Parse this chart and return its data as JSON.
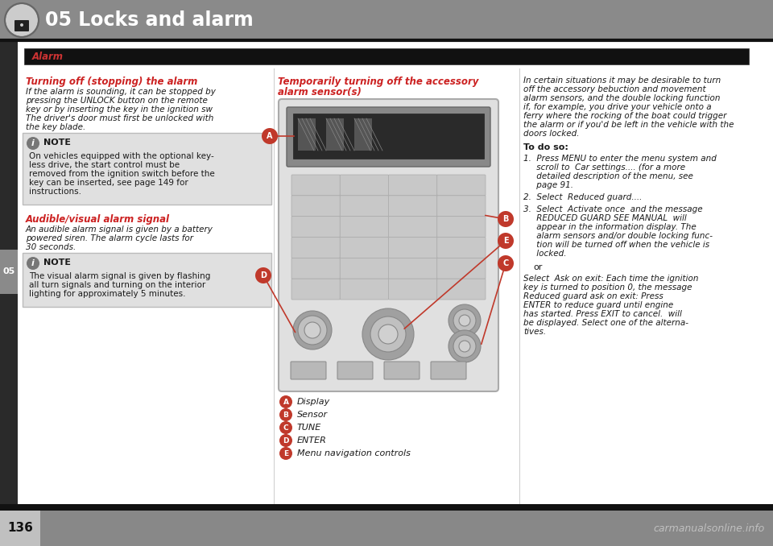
{
  "title": "05 Locks and alarm",
  "header_bg": "#8a8a8a",
  "header_text_color": "#ffffff",
  "page_bg": "#2a2a2a",
  "content_bg": "#ffffff",
  "alarm_label": "Alarm",
  "alarm_bar_bg": "#1a1a1a",
  "alarm_label_color": "#cc3333",
  "section1_title": "Turning off (stopping) the alarm",
  "section1_body_lines": [
    "If the alarm is sounding, it can be stopped by",
    "pressing the UNLOCK button on the remote",
    "key or by inserting the key in the ignition sw",
    "The driver's door must first be unlocked with",
    "the key blade."
  ],
  "note1_body_lines": [
    "On vehicles equipped with the optional key-",
    "less drive, the start control must be",
    "removed from the ignition switch before the",
    "key can be inserted, see page 149 for",
    "instructions."
  ],
  "section2_title": "Audible/visual alarm signal",
  "section2_body_lines": [
    "An audible alarm signal is given by a battery",
    "powered siren. The alarm cycle lasts for",
    "30 seconds."
  ],
  "note2_body_lines": [
    "The visual alarm signal is given by flashing",
    "all turn signals and turning on the interior",
    "lighting for approximately 5 minutes."
  ],
  "center_title_lines": [
    "Temporarily turning off the accessory",
    "alarm sensor(s)"
  ],
  "center_legend": [
    [
      "A",
      "Display"
    ],
    [
      "B",
      "Sensor"
    ],
    [
      "C",
      "TUNE"
    ],
    [
      "D",
      "ENTER"
    ],
    [
      "E",
      "Menu navigation controls"
    ]
  ],
  "right_body1_lines": [
    "In certain situations it may be desirable to turn",
    "off the accessory bebuction and movement",
    "alarm sensors, and the double locking function",
    "if, for example, you drive your vehicle onto a",
    "ferry where the rocking of the boat could trigger",
    "the alarm or if you'd be left in the vehicle with the",
    "doors locked."
  ],
  "right_todo": "To do so:",
  "right_item1_lines": [
    "1.  Press MENU to enter the menu system and",
    "     scroll to  Car settings.... (for a more",
    "     detailed description of the menu, see",
    "     page 91."
  ],
  "right_item2_lines": [
    "2.  Select  Reduced guard...."
  ],
  "right_item3_lines": [
    "3.  Select  Activate once  and the message",
    "     REDUCED GUARD SEE MANUAL  will",
    "     appear in the information display. The",
    "     alarm sensors and/or double locking func-",
    "     tion will be turned off when the vehicle is",
    "     locked."
  ],
  "right_or": "or",
  "right_item4_lines": [
    "Select  Ask on exit: Each time the ignition",
    "key is turned to position 0, the message",
    "Reduced guard ask on exit: Press",
    "ENTER to reduce guard until engine",
    "has started. Press EXIT to cancel.  will",
    "be displayed. Select one of the alterna-",
    "tives."
  ],
  "page_number": "136",
  "watermark": "carmanualsonline.info",
  "section_title_color": "#cc2222",
  "note_bg": "#e0e0e0",
  "note_border": "#bbbbbb",
  "red_color": "#c0392b",
  "tab_bg": "#8a8a8a",
  "tab_text": "05",
  "NOTE": "NOTE"
}
